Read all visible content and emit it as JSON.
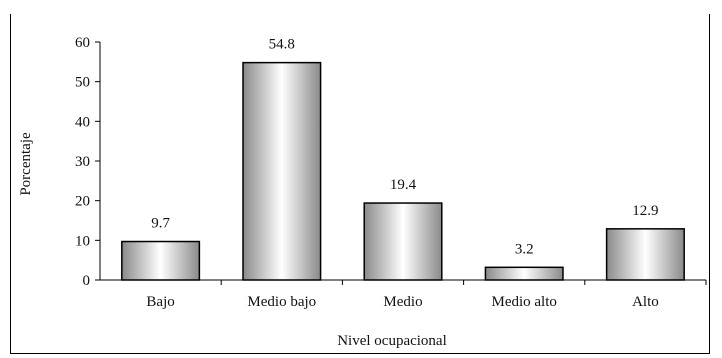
{
  "chart_data": {
    "type": "bar",
    "title": "",
    "xlabel": "Nivel ocupacional",
    "ylabel": "Porcentaje",
    "ylim": [
      0,
      60
    ],
    "yticks": [
      0,
      10,
      20,
      30,
      40,
      50,
      60
    ],
    "categories": [
      "Bajo",
      "Medio bajo",
      "Medio",
      "Medio alto",
      "Alto"
    ],
    "values": [
      9.7,
      54.8,
      19.4,
      3.2,
      12.9
    ],
    "data_labels": [
      "9.7",
      "54.8",
      "19.4",
      "3.2",
      "12.9"
    ],
    "grid": false,
    "legend": "none",
    "bar_gradient": [
      "#8a8a8a",
      "#ffffff",
      "#8a8a8a"
    ],
    "bar_stroke": "#000000"
  }
}
